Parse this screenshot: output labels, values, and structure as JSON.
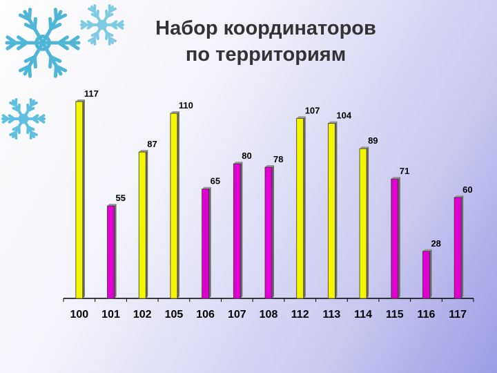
{
  "title_lines": [
    "Набор координаторов",
    "по территориям"
  ],
  "colors": {
    "yellow": "#f5f500",
    "magenta": "#e000d0",
    "axis": "#000000"
  },
  "icons": [
    "snowflake-icon",
    "snowflake-icon",
    "snowflake-icon"
  ],
  "chart_data": {
    "type": "bar",
    "title": "Набор координаторов по территориям",
    "categories": [
      "100",
      "101",
      "102",
      "105",
      "106",
      "107",
      "108",
      "112",
      "113",
      "114",
      "115",
      "116",
      "117"
    ],
    "series": [
      {
        "values": [
          117,
          55,
          87,
          110,
          65,
          80,
          78,
          107,
          104,
          89,
          71,
          28,
          60
        ]
      }
    ],
    "bar_colors": [
      "#f5f500",
      "#e000d0",
      "#f5f500",
      "#f5f500",
      "#e000d0",
      "#e000d0",
      "#e000d0",
      "#f5f500",
      "#f5f500",
      "#f5f500",
      "#e000d0",
      "#e000d0",
      "#e000d0"
    ],
    "ylim": [
      0,
      117
    ],
    "grid": false,
    "legend": "none"
  }
}
